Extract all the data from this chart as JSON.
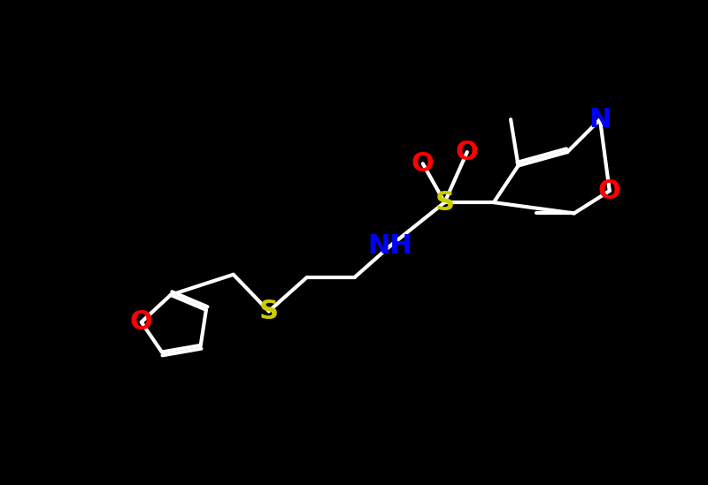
{
  "bg_color": "#000000",
  "bond_color": "#ffffff",
  "bond_lw": 3.0,
  "atom_colors": {
    "O": "#ff0000",
    "S_sulfonyl": "#cccc00",
    "S_thioether": "#cccc00",
    "N": "#0000ff",
    "NH": "#0000ff",
    "C": "#ffffff"
  },
  "font_size_atoms": 22
}
